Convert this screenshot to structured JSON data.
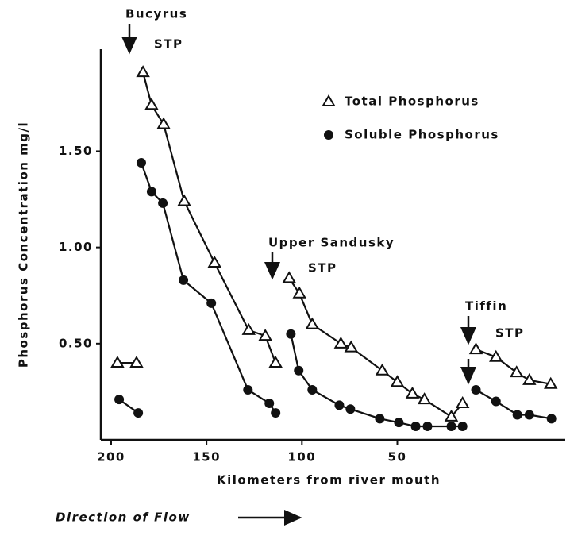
{
  "chart_data": {
    "type": "line",
    "xlabel": "Kilometers from river mouth",
    "ylabel": "Phosphorus Concentration mg/l",
    "footer": "Direction of Flow",
    "annotations": [
      "Bucyrus",
      "STP",
      "Upper Sandusky",
      "STP",
      "Tiffin",
      "STP"
    ],
    "xlim": [
      205.4,
      -38
    ],
    "xticks": [
      200,
      150,
      100,
      50
    ],
    "ylim": [
      0,
      2.03
    ],
    "yticks": [
      {
        "value": 0.5,
        "label": "0.50"
      },
      {
        "value": 1.0,
        "label": "1.00"
      },
      {
        "value": 1.5,
        "label": "1.50"
      }
    ],
    "series": [
      {
        "name": "Total Phosphorus",
        "color": "#111111",
        "marker": "triangle",
        "x": [
          196.7,
          186.7,
          null,
          183.3,
          178.8,
          172.5,
          161.7,
          145.8,
          127.9,
          119.2,
          113.8,
          null,
          106.7,
          101.3,
          94.6,
          79.6,
          74.2,
          57.9,
          50.0,
          42.1,
          35.8,
          21.7,
          15.8,
          null,
          8.8,
          -1.7,
          -12.5,
          -19.2,
          -30.4
        ],
        "values": [
          0.4,
          0.4,
          null,
          1.91,
          1.74,
          1.64,
          1.24,
          0.92,
          0.57,
          0.54,
          0.4,
          null,
          0.84,
          0.76,
          0.6,
          0.5,
          0.48,
          0.36,
          0.3,
          0.24,
          0.21,
          0.12,
          0.19,
          null,
          0.47,
          0.43,
          0.35,
          0.31,
          0.29
        ]
      },
      {
        "name": "Soluble Phosphorus",
        "color": "#111111",
        "marker": "circle",
        "x": [
          195.8,
          185.8,
          null,
          184.2,
          178.8,
          172.9,
          162.1,
          147.5,
          128.3,
          117.1,
          113.8,
          null,
          105.8,
          101.7,
          94.6,
          80.4,
          74.6,
          59.2,
          49.2,
          40.4,
          34.2,
          21.7,
          15.8,
          null,
          8.8,
          -1.7,
          -12.9,
          -19.2,
          -30.8
        ],
        "values": [
          0.21,
          0.14,
          null,
          1.44,
          1.29,
          1.23,
          0.83,
          0.71,
          0.26,
          0.19,
          0.14,
          null,
          0.55,
          0.36,
          0.26,
          0.18,
          0.16,
          0.11,
          0.09,
          0.07,
          0.07,
          0.07,
          0.07,
          null,
          0.26,
          0.2,
          0.13,
          0.13,
          0.11
        ]
      }
    ]
  }
}
